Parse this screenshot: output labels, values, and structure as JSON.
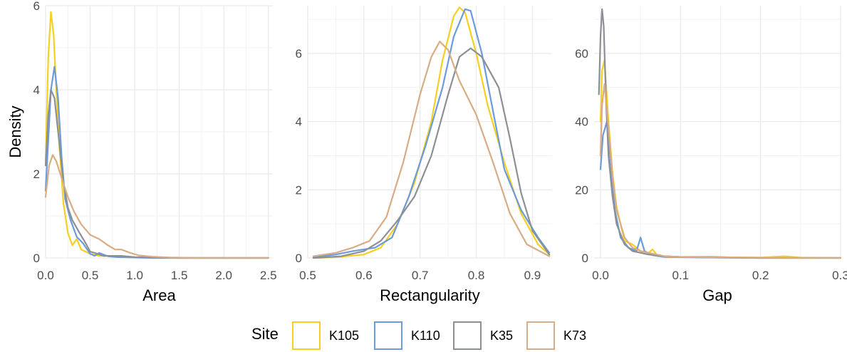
{
  "figure": {
    "ylabel": "Density",
    "legend": {
      "title": "Site",
      "placement": "bottom",
      "entries": [
        {
          "label": "K105",
          "color": "#F5D020"
        },
        {
          "label": "K110",
          "color": "#6C9BDB"
        },
        {
          "label": "K35",
          "color": "#8C9096"
        },
        {
          "label": "K73",
          "color": "#D8AC84"
        }
      ]
    },
    "grid": true
  },
  "chart_data": [
    {
      "type": "line",
      "xlabel": "Area",
      "ylabel": "Density",
      "xlim": [
        0,
        2.55
      ],
      "ylim": [
        0,
        6
      ],
      "xticks": [
        0.0,
        0.5,
        1.0,
        1.5,
        2.0,
        2.5
      ],
      "xtick_labels": [
        "0.0",
        "0.5",
        "1.0",
        "1.5",
        "2.0",
        "2.5"
      ],
      "yticks": [
        0,
        2,
        4,
        6
      ],
      "ytick_labels": [
        "0",
        "2",
        "4",
        "6"
      ],
      "series": [
        {
          "name": "K105",
          "x": [
            0.0,
            0.03,
            0.06,
            0.09,
            0.12,
            0.15,
            0.2,
            0.25,
            0.3,
            0.35,
            0.4,
            0.5,
            0.6,
            0.7,
            0.8,
            0.9,
            1.0,
            1.2,
            1.5,
            2.0,
            2.5
          ],
          "y": [
            2.3,
            4.8,
            5.85,
            5.3,
            4.0,
            2.8,
            1.3,
            0.6,
            0.3,
            0.45,
            0.2,
            0.1,
            0.05,
            0.05,
            0.05,
            0.03,
            0.02,
            0.01,
            0.0,
            0.0,
            0.0
          ]
        },
        {
          "name": "K110",
          "x": [
            0.0,
            0.03,
            0.06,
            0.1,
            0.14,
            0.18,
            0.22,
            0.28,
            0.35,
            0.42,
            0.5,
            0.55,
            0.6,
            0.7,
            0.8,
            1.0,
            1.2,
            1.5,
            2.0,
            2.5
          ],
          "y": [
            1.6,
            2.8,
            4.0,
            4.55,
            3.8,
            2.4,
            1.4,
            0.9,
            0.5,
            0.35,
            0.1,
            0.05,
            0.12,
            0.04,
            0.02,
            0.01,
            0.0,
            0.0,
            0.0,
            0.0
          ]
        },
        {
          "name": "K35",
          "x": [
            0.0,
            0.03,
            0.06,
            0.1,
            0.15,
            0.2,
            0.25,
            0.3,
            0.38,
            0.45,
            0.5,
            0.58,
            0.65,
            0.75,
            0.85,
            1.0,
            1.2,
            1.5,
            2.0,
            2.5
          ],
          "y": [
            2.2,
            3.4,
            4.0,
            3.8,
            2.8,
            1.8,
            1.2,
            0.9,
            0.6,
            0.35,
            0.15,
            0.1,
            0.05,
            0.05,
            0.05,
            0.02,
            0.01,
            0.0,
            0.0,
            0.0
          ]
        },
        {
          "name": "K73",
          "x": [
            0.0,
            0.04,
            0.08,
            0.12,
            0.18,
            0.25,
            0.32,
            0.4,
            0.5,
            0.6,
            0.7,
            0.78,
            0.85,
            0.95,
            1.05,
            1.2,
            1.4,
            1.7,
            2.0,
            2.5
          ],
          "y": [
            1.45,
            2.2,
            2.45,
            2.3,
            1.9,
            1.45,
            1.1,
            0.8,
            0.55,
            0.45,
            0.3,
            0.2,
            0.2,
            0.12,
            0.06,
            0.03,
            0.01,
            0.0,
            0.0,
            0.0
          ]
        }
      ]
    },
    {
      "type": "line",
      "xlabel": "Rectangularity",
      "ylabel": "",
      "xlim": [
        0.5,
        0.935
      ],
      "ylim": [
        0,
        7.4
      ],
      "xticks": [
        0.5,
        0.6,
        0.7,
        0.8,
        0.9
      ],
      "xtick_labels": [
        "0.5",
        "0.6",
        "0.7",
        "0.8",
        "0.9"
      ],
      "yticks": [
        0,
        2,
        4,
        6
      ],
      "ytick_labels": [
        "0",
        "2",
        "4",
        "6"
      ],
      "series": [
        {
          "name": "K105",
          "x": [
            0.51,
            0.55,
            0.6,
            0.63,
            0.66,
            0.69,
            0.72,
            0.74,
            0.76,
            0.77,
            0.78,
            0.8,
            0.82,
            0.85,
            0.88,
            0.91,
            0.93
          ],
          "y": [
            0.0,
            0.02,
            0.1,
            0.3,
            1.0,
            2.2,
            4.0,
            5.8,
            7.1,
            7.35,
            7.2,
            6.0,
            4.5,
            2.8,
            1.3,
            0.4,
            0.1
          ]
        },
        {
          "name": "K110",
          "x": [
            0.51,
            0.55,
            0.58,
            0.62,
            0.65,
            0.68,
            0.71,
            0.74,
            0.76,
            0.78,
            0.79,
            0.81,
            0.83,
            0.85,
            0.88,
            0.91,
            0.93
          ],
          "y": [
            0.02,
            0.1,
            0.2,
            0.3,
            0.6,
            1.8,
            3.3,
            5.0,
            6.5,
            7.3,
            7.25,
            6.0,
            4.3,
            2.6,
            1.4,
            0.6,
            0.15
          ]
        },
        {
          "name": "K35",
          "x": [
            0.51,
            0.56,
            0.6,
            0.63,
            0.66,
            0.69,
            0.72,
            0.75,
            0.77,
            0.79,
            0.81,
            0.84,
            0.86,
            0.88,
            0.9,
            0.93
          ],
          "y": [
            0.0,
            0.05,
            0.2,
            0.5,
            1.1,
            1.8,
            3.0,
            4.8,
            5.9,
            6.15,
            5.9,
            5.0,
            3.5,
            1.9,
            0.8,
            0.1
          ]
        },
        {
          "name": "K73",
          "x": [
            0.51,
            0.55,
            0.58,
            0.61,
            0.64,
            0.67,
            0.7,
            0.72,
            0.735,
            0.75,
            0.77,
            0.8,
            0.83,
            0.86,
            0.89,
            0.93
          ],
          "y": [
            0.05,
            0.15,
            0.3,
            0.5,
            1.2,
            2.8,
            4.8,
            5.9,
            6.35,
            6.1,
            5.2,
            4.2,
            2.8,
            1.3,
            0.4,
            0.05
          ]
        }
      ]
    },
    {
      "type": "line",
      "xlabel": "Gap",
      "ylabel": "",
      "xlim": [
        -0.008,
        0.3
      ],
      "ylim": [
        0,
        74
      ],
      "xticks": [
        0.0,
        0.1,
        0.2,
        0.3
      ],
      "xtick_labels": [
        "0.0",
        "0.1",
        "0.2",
        "0.3"
      ],
      "yticks": [
        0,
        20,
        40,
        60
      ],
      "ytick_labels": [
        "0",
        "20",
        "40",
        "60"
      ],
      "series": [
        {
          "name": "K105",
          "x": [
            0.0,
            0.002,
            0.005,
            0.01,
            0.015,
            0.02,
            0.025,
            0.03,
            0.04,
            0.045,
            0.05,
            0.06,
            0.065,
            0.07,
            0.08,
            0.1,
            0.14,
            0.16,
            0.2,
            0.23,
            0.25,
            0.3
          ],
          "y": [
            40,
            55,
            58,
            40,
            25,
            15,
            10,
            5,
            4,
            3,
            2,
            1.5,
            2.5,
            1,
            0.5,
            0.3,
            0.4,
            0.2,
            0.1,
            0.5,
            0.1,
            0.0
          ]
        },
        {
          "name": "K110",
          "x": [
            0.0,
            0.003,
            0.008,
            0.012,
            0.018,
            0.025,
            0.035,
            0.045,
            0.05,
            0.055,
            0.065,
            0.08,
            0.1,
            0.15,
            0.2,
            0.3
          ],
          "y": [
            26,
            36,
            40,
            30,
            14,
            6,
            3,
            2,
            6,
            2,
            0.8,
            0.3,
            0.2,
            0.1,
            0.0,
            0.0
          ]
        },
        {
          "name": "K35",
          "x": [
            -0.002,
            0.0,
            0.002,
            0.004,
            0.007,
            0.01,
            0.015,
            0.02,
            0.03,
            0.04,
            0.05,
            0.06,
            0.08,
            0.1,
            0.15,
            0.2,
            0.3
          ],
          "y": [
            48,
            65,
            73,
            68,
            45,
            30,
            18,
            10,
            4,
            2,
            1.5,
            1,
            0.5,
            0.3,
            0.1,
            0.0,
            0.0
          ]
        },
        {
          "name": "K73",
          "x": [
            0.0,
            0.002,
            0.005,
            0.01,
            0.015,
            0.02,
            0.03,
            0.04,
            0.05,
            0.06,
            0.07,
            0.08,
            0.1,
            0.15,
            0.2,
            0.3
          ],
          "y": [
            30,
            45,
            51,
            38,
            24,
            14,
            6,
            3,
            2,
            1.5,
            1,
            0.5,
            0.3,
            0.2,
            0.1,
            0.0
          ]
        }
      ]
    }
  ]
}
